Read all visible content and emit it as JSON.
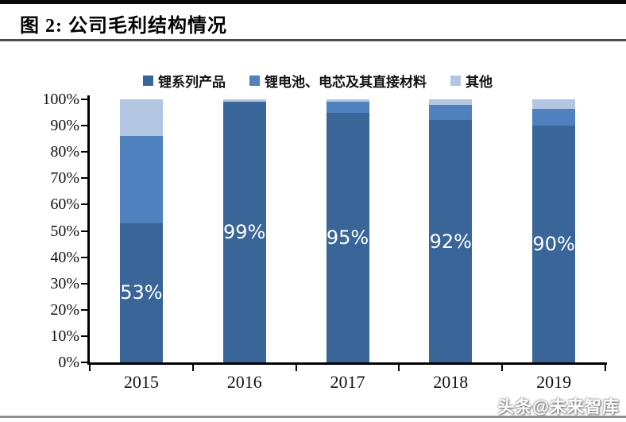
{
  "header": {
    "title": "图 2:  公司毛利结构情况"
  },
  "watermark": {
    "text": "头条@未来智库"
  },
  "chart_data": {
    "type": "bar",
    "stacked": true,
    "title": "公司毛利结构情况",
    "figure_label": "图 2",
    "categories": [
      "2015",
      "2016",
      "2017",
      "2018",
      "2019"
    ],
    "series": [
      {
        "name": "锂系列产品",
        "color": "#3A6598",
        "values": [
          53,
          99,
          95,
          92,
          90
        ],
        "data_labels": [
          "53%",
          "99%",
          "95%",
          "92%",
          "90%"
        ]
      },
      {
        "name": "锂电池、电芯及其直接材料",
        "color": "#4E81BD",
        "values": [
          33,
          0,
          4,
          6,
          6.5
        ]
      },
      {
        "name": "其他",
        "color": "#B3C6E1",
        "values": [
          14,
          1,
          1,
          2,
          3.5
        ]
      }
    ],
    "ylim": [
      0,
      100
    ],
    "ytick_step": 10,
    "ytick_labels": [
      "0%",
      "10%",
      "20%",
      "30%",
      "40%",
      "50%",
      "60%",
      "70%",
      "80%",
      "90%",
      "100%"
    ],
    "legend_position": "top",
    "grid": false,
    "data_label_color": "#ffffff",
    "xlabel": "",
    "ylabel": ""
  }
}
